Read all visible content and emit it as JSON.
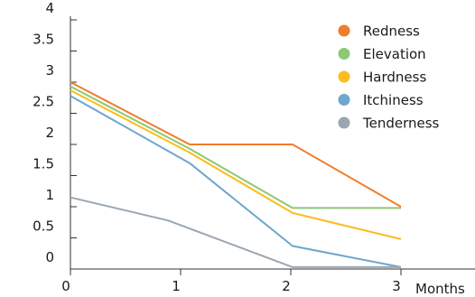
{
  "chart_data": {
    "type": "line",
    "title": "",
    "xlabel": "Months",
    "ylabel": "",
    "x_ticks": [
      0,
      1,
      2,
      3
    ],
    "y_ticks": [
      "0",
      "0.5",
      "1",
      "1.5",
      "2",
      "2.5",
      "3",
      "3.5",
      "4"
    ],
    "xlim": [
      0,
      3
    ],
    "ylim": [
      0,
      4
    ],
    "grid": false,
    "legend_position": "top-right",
    "series": [
      {
        "name": "Redness",
        "color": "#f07d2b",
        "points": [
          [
            0,
            3.0
          ],
          [
            1.1,
            2.0
          ],
          [
            2.05,
            2.0
          ],
          [
            3.05,
            1.0
          ]
        ]
      },
      {
        "name": "Elevation",
        "color": "#8dc872",
        "points": [
          [
            0,
            2.93
          ],
          [
            1.1,
            1.93
          ],
          [
            2.05,
            0.98
          ],
          [
            3.05,
            0.98
          ]
        ]
      },
      {
        "name": "Hardness",
        "color": "#fbbc1c",
        "points": [
          [
            0,
            2.87
          ],
          [
            1.1,
            1.87
          ],
          [
            2.05,
            0.9
          ],
          [
            3.05,
            0.48
          ]
        ]
      },
      {
        "name": "Itchiness",
        "color": "#6ea6cd",
        "points": [
          [
            0,
            2.78
          ],
          [
            1.1,
            1.7
          ],
          [
            2.05,
            0.37
          ],
          [
            3.05,
            0.03
          ]
        ]
      },
      {
        "name": "Tenderness",
        "color": "#9aa6b1",
        "points": [
          [
            0,
            1.15
          ],
          [
            0.9,
            0.78
          ],
          [
            2.05,
            0.03
          ],
          [
            3.05,
            0.03
          ]
        ]
      }
    ]
  }
}
